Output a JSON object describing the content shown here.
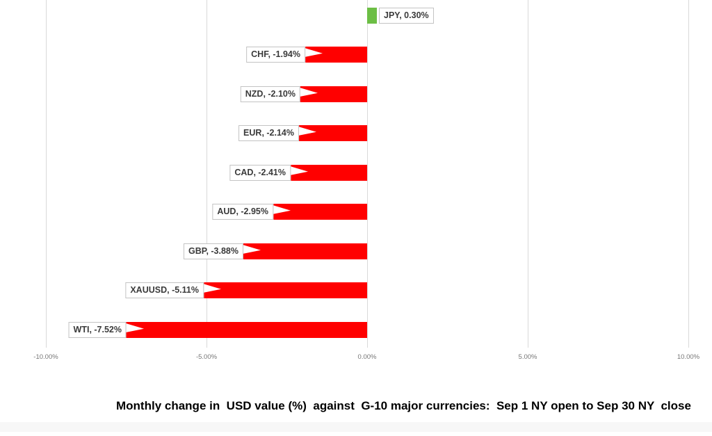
{
  "chart_data": {
    "type": "bar",
    "orientation": "horizontal",
    "title": "Monthly change in  USD value (%)  against  G-10 major currencies:  Sep 1 NY open to Sep 30 NY  close",
    "categories": [
      "JPY",
      "CHF",
      "NZD",
      "EUR",
      "CAD",
      "AUD",
      "GBP",
      "XAUUSD",
      "WTI"
    ],
    "values": [
      0.3,
      -1.94,
      -2.1,
      -2.14,
      -2.41,
      -2.95,
      -3.88,
      -5.11,
      -7.52
    ],
    "data_labels": [
      "JPY, 0.30%",
      "CHF, -1.94%",
      "NZD, -2.10%",
      "EUR, -2.14%",
      "CAD, -2.41%",
      "AUD, -2.95%",
      "GBP, -3.88%",
      "XAUUSD, -5.11%",
      "WTI, -7.52%"
    ],
    "x_ticks": [
      {
        "label": "-10.00%",
        "value": -10
      },
      {
        "label": "-5.00%",
        "value": -5
      },
      {
        "label": "0.00%",
        "value": 0
      },
      {
        "label": "5.00%",
        "value": 5
      },
      {
        "label": "10.00%",
        "value": 10
      }
    ],
    "xlim": [
      -10,
      10
    ],
    "grid": true,
    "legend": "none",
    "colors": {
      "positive": "#6cbe45",
      "negative": "#ff0000",
      "gridline": "#d9d9d9",
      "label_text": "#3a3a3a",
      "label_border": "#c3c3c3",
      "tick_text": "#767676",
      "title_text": "#000000"
    }
  }
}
